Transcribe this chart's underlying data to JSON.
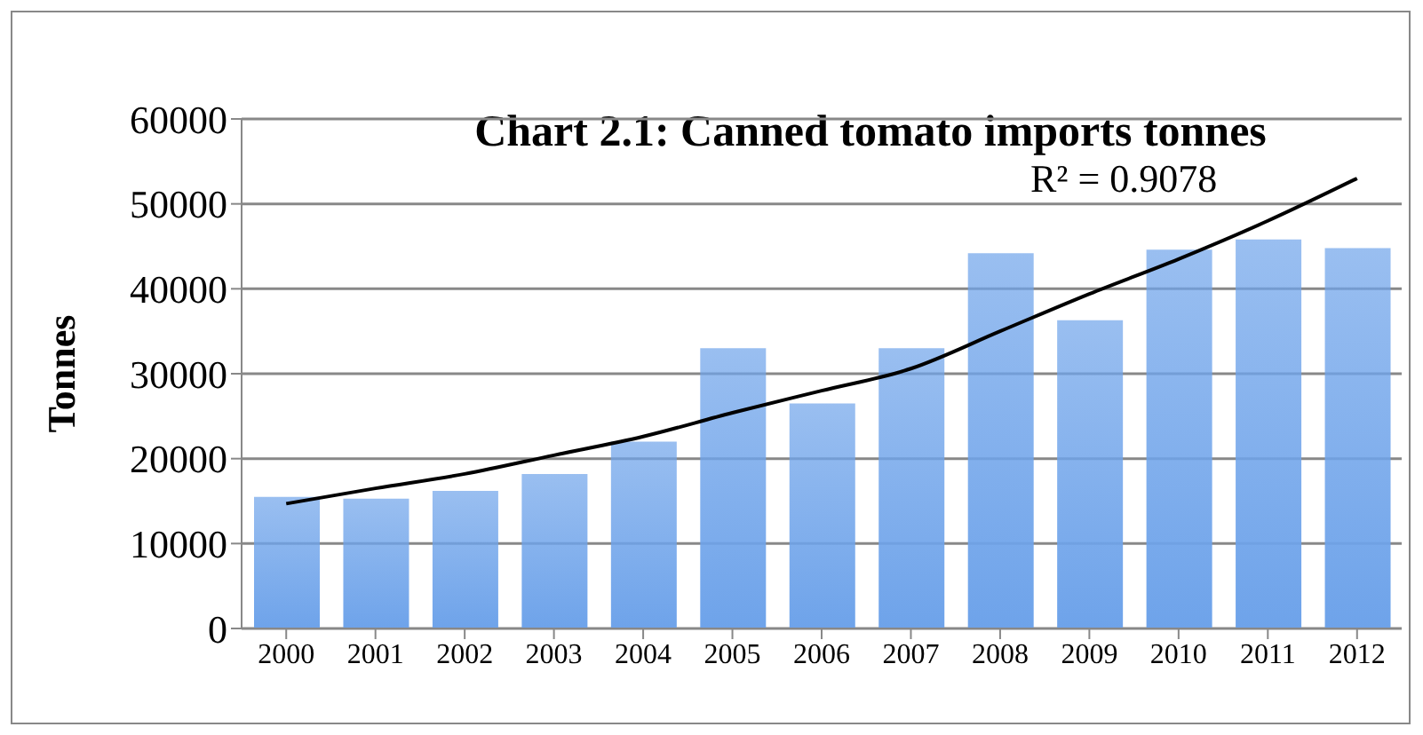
{
  "chart_data": {
    "type": "bar",
    "title": "Chart 2.1: Canned tomato imports tonnes",
    "ylabel": "Tonnes",
    "categories": [
      "2000",
      "2001",
      "2002",
      "2003",
      "2004",
      "2005",
      "2006",
      "2007",
      "2008",
      "2009",
      "2010",
      "2011",
      "2012"
    ],
    "series": [
      {
        "color": "#6ea3ea",
        "values": [
          15500,
          15300,
          16200,
          18200,
          22000,
          33000,
          26500,
          33000,
          44200,
          36300,
          44600,
          45800,
          44800
        ]
      },
      {
        "type": "line",
        "color": "#000000",
        "values": [
          14700,
          16500,
          18200,
          20400,
          22600,
          25400,
          28000,
          30600,
          35000,
          39400,
          43500,
          48000,
          53000
        ]
      }
    ],
    "ylim": [
      0,
      60000
    ],
    "yticks": [
      0,
      10000,
      20000,
      30000,
      40000,
      50000,
      60000
    ],
    "grid": "y",
    "annotations": [
      "R² = 0.9078"
    ]
  }
}
